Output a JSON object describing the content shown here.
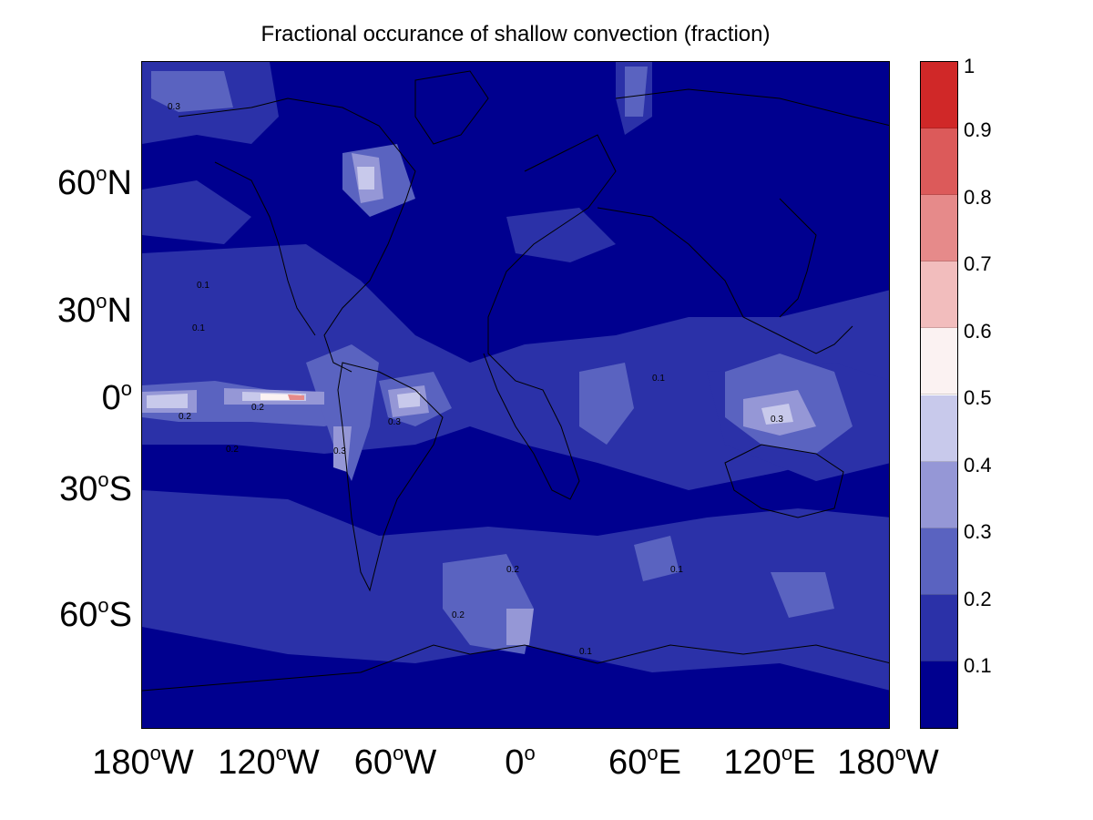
{
  "title": "Fractional occurance of shallow convection (fraction)",
  "map": {
    "type": "filled-contour-map",
    "projection": "equirectangular",
    "lon_range": [
      -180,
      180
    ],
    "lat_range": [
      -90,
      90
    ],
    "colormap": "blue-white-red",
    "coastlines": true,
    "lat_ticks": [
      {
        "deg": "60",
        "hemi": "N"
      },
      {
        "deg": "30",
        "hemi": "N"
      },
      {
        "deg": "0",
        "hemi": ""
      },
      {
        "deg": "30",
        "hemi": "S"
      },
      {
        "deg": "60",
        "hemi": "S"
      }
    ],
    "lon_ticks": [
      {
        "deg": "180",
        "hemi": "W"
      },
      {
        "deg": "120",
        "hemi": "W"
      },
      {
        "deg": "60",
        "hemi": "W"
      },
      {
        "deg": "0",
        "hemi": ""
      },
      {
        "deg": "60",
        "hemi": "E"
      },
      {
        "deg": "120",
        "hemi": "E"
      },
      {
        "deg": "180",
        "hemi": "W"
      }
    ],
    "contour_labels": [
      "0.1",
      "0.2",
      "0.3"
    ]
  },
  "colorbar": {
    "ticks": [
      "1",
      "0.9",
      "0.8",
      "0.7",
      "0.6",
      "0.5",
      "0.4",
      "0.3",
      "0.2",
      "0.1"
    ],
    "levels": [
      {
        "from": 0.0,
        "to": 0.1,
        "color": "#00008F"
      },
      {
        "from": 0.1,
        "to": 0.2,
        "color": "#2B31A8"
      },
      {
        "from": 0.2,
        "to": 0.3,
        "color": "#5A63C0"
      },
      {
        "from": 0.3,
        "to": 0.4,
        "color": "#9597D6"
      },
      {
        "from": 0.4,
        "to": 0.5,
        "color": "#C8C9EB"
      },
      {
        "from": 0.5,
        "to": 0.6,
        "color": "#FBF2F2"
      },
      {
        "from": 0.6,
        "to": 0.7,
        "color": "#F2BDBD"
      },
      {
        "from": 0.7,
        "to": 0.8,
        "color": "#E68A8A"
      },
      {
        "from": 0.8,
        "to": 0.9,
        "color": "#DC5A5A"
      },
      {
        "from": 0.9,
        "to": 1.0,
        "color": "#D02828"
      }
    ]
  }
}
